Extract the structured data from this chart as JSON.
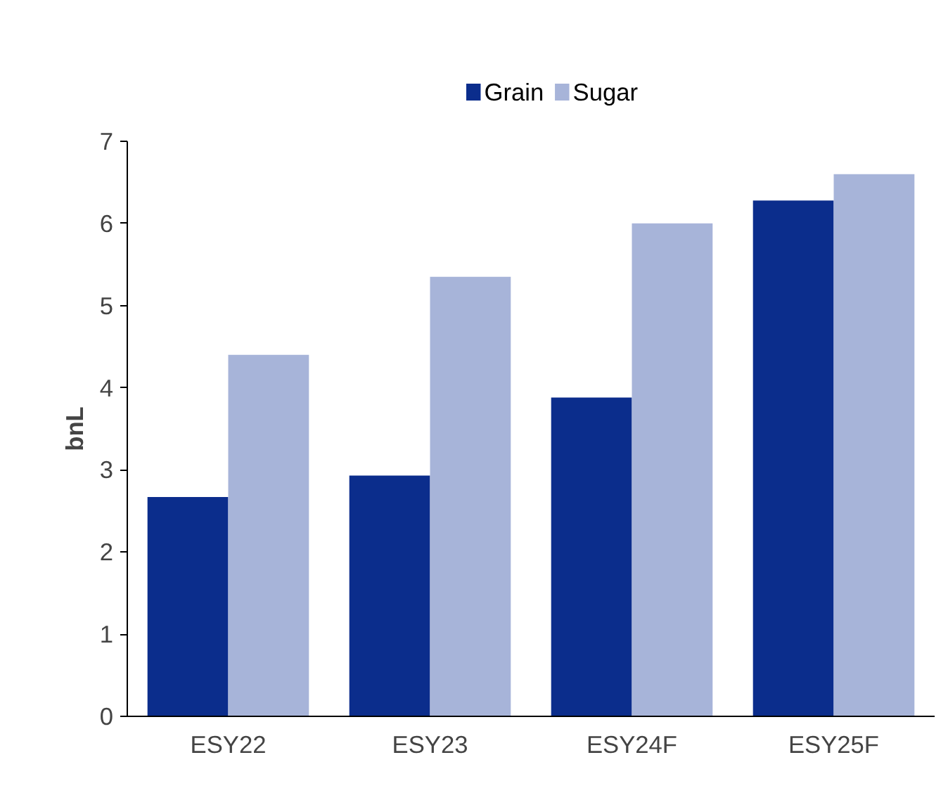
{
  "chart_data": {
    "type": "bar",
    "ylabel": "bnL",
    "categories": [
      "ESY22",
      "ESY23",
      "ESY24F",
      "ESY25F"
    ],
    "series": [
      {
        "name": "Grain",
        "color": "#0b2d8c",
        "values": [
          2.67,
          2.93,
          3.88,
          6.28
        ]
      },
      {
        "name": "Sugar",
        "color": "#a7b4d9",
        "values": [
          4.4,
          5.35,
          6.0,
          6.6
        ]
      }
    ],
    "ylim": [
      0,
      7
    ],
    "yticks": [
      0,
      1,
      2,
      3,
      4,
      5,
      6,
      7
    ],
    "grid": false,
    "legend": "top"
  }
}
